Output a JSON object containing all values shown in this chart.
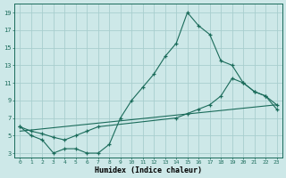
{
  "bg_color": "#cde8e8",
  "grid_color": "#a8cece",
  "line_color": "#1a6b5a",
  "xlabel": "Humidex (Indice chaleur)",
  "xlim": [
    -0.5,
    23.5
  ],
  "ylim": [
    2.5,
    20.0
  ],
  "xticks": [
    0,
    1,
    2,
    3,
    4,
    5,
    6,
    7,
    8,
    9,
    10,
    11,
    12,
    13,
    14,
    15,
    16,
    17,
    18,
    19,
    20,
    21,
    22,
    23
  ],
  "yticks": [
    3,
    5,
    7,
    9,
    11,
    13,
    15,
    17,
    19
  ],
  "curve1_x": [
    0,
    1,
    2,
    3,
    4,
    5,
    6,
    7,
    8,
    9,
    10,
    11,
    12,
    13,
    14,
    15,
    16,
    17,
    18,
    19,
    20,
    21,
    22,
    23
  ],
  "curve1_y": [
    6,
    5,
    4.5,
    3,
    3.5,
    3.5,
    3,
    3,
    4,
    7,
    9,
    10.5,
    12,
    14,
    15.5,
    19,
    17.5,
    16.5,
    13.5,
    13,
    11,
    10,
    9.5,
    8.5
  ],
  "curve2_x": [
    0,
    1,
    2,
    3,
    4,
    5,
    6,
    7,
    14,
    15,
    16,
    17,
    18,
    19,
    20,
    21,
    22,
    23
  ],
  "curve2_y": [
    6,
    5.5,
    5.2,
    4.8,
    4.5,
    5,
    5.5,
    6,
    7,
    7.5,
    8,
    8.5,
    9.5,
    11.5,
    11,
    10,
    9.5,
    8
  ],
  "curve3_x": [
    0,
    23
  ],
  "curve3_y": [
    5.5,
    8.5
  ]
}
